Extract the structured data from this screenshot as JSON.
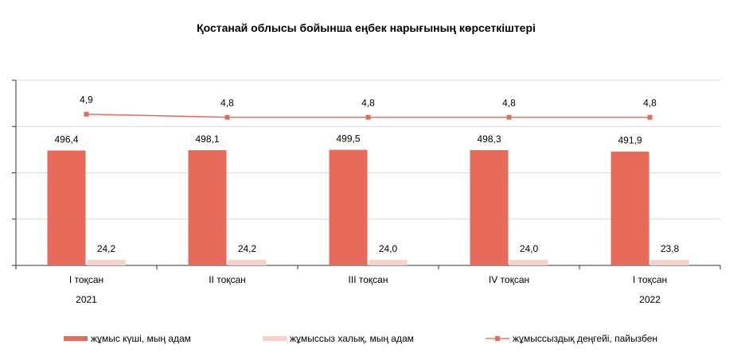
{
  "chart_data": {
    "type": "bar",
    "title": "Қостанай облысы бойынша еңбек нарығының көрсеткіштері",
    "categories": [
      "I тоқсан",
      "II тоқсан",
      "III тоқсан",
      "IV тоқсан",
      "I тоқсан"
    ],
    "year_labels": [
      "2021",
      "",
      "",
      "",
      "2022"
    ],
    "ylim": [
      0,
      800
    ],
    "y2lim": [
      0,
      6
    ],
    "grid": true,
    "legend_position": "bottom",
    "series": [
      {
        "name": "жұмыс күші, мың адам",
        "type": "bar",
        "color": "#E66B5B",
        "values": [
          496.4,
          498.1,
          499.5,
          498.3,
          491.9
        ],
        "labels": [
          "496,4",
          "498,1",
          "499,5",
          "498,3",
          "491,9"
        ]
      },
      {
        "name": "жұмыссыз халық, мың адам",
        "type": "bar",
        "color": "#F8D0CB",
        "values": [
          24.2,
          24.2,
          24.0,
          24.0,
          23.8
        ],
        "labels": [
          "24,2",
          "24,2",
          "24,0",
          "24,0",
          "23,8"
        ]
      },
      {
        "name": "жұмыссыздық деңгейі, пайызбен",
        "type": "line",
        "axis": "secondary",
        "color": "#E66B5B",
        "values": [
          4.9,
          4.8,
          4.8,
          4.8,
          4.8
        ],
        "labels": [
          "4,9",
          "4,8",
          "4,8",
          "4,8",
          "4,8"
        ]
      }
    ]
  }
}
